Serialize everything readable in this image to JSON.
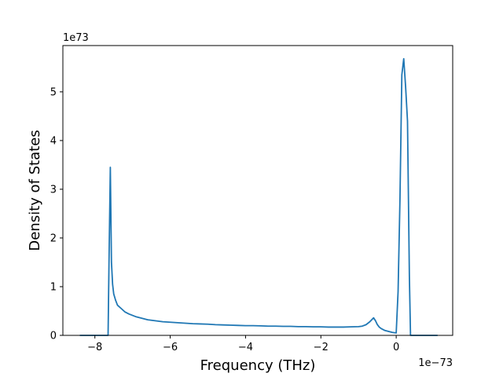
{
  "chart_data": {
    "type": "line",
    "xlabel": "Frequency (THz)",
    "ylabel": "Density of States",
    "x_offset_label": "1e−73",
    "y_offset_label": "1e73",
    "xlim": [
      -8.85,
      1.5
    ],
    "ylim": [
      0,
      5.95
    ],
    "x_ticks": [
      -8,
      -6,
      -4,
      -2,
      0
    ],
    "x_tick_labels": [
      "−8",
      "−6",
      "−4",
      "−2",
      "0"
    ],
    "y_ticks": [
      0,
      1,
      2,
      3,
      4,
      5
    ],
    "y_tick_labels": [
      "0",
      "1",
      "2",
      "3",
      "4",
      "5"
    ],
    "grid": false,
    "line_color": "#1f77b4",
    "series": [
      {
        "x": [
          -8.4,
          -7.65,
          -7.62,
          -7.59,
          -7.56,
          -7.53,
          -7.5,
          -7.45,
          -7.4,
          -7.3,
          -7.2,
          -7.1,
          -7.0,
          -6.9,
          -6.8,
          -6.7,
          -6.6,
          -6.5,
          -6.4,
          -6.2,
          -6.0,
          -5.8,
          -5.6,
          -5.4,
          -5.2,
          -5.0,
          -4.8,
          -4.6,
          -4.4,
          -4.2,
          -4.0,
          -3.8,
          -3.6,
          -3.4,
          -3.2,
          -3.0,
          -2.8,
          -2.6,
          -2.4,
          -2.2,
          -2.0,
          -1.8,
          -1.6,
          -1.4,
          -1.2,
          -1.0,
          -0.9,
          -0.8,
          -0.7,
          -0.6,
          -0.55,
          -0.5,
          -0.45,
          -0.4,
          -0.3,
          -0.2,
          -0.1,
          0.0,
          0.05,
          0.1,
          0.15,
          0.2,
          0.25,
          0.3,
          0.35,
          0.38,
          0.41,
          0.6,
          1.1
        ],
        "y": [
          0,
          0,
          1.8,
          3.45,
          1.5,
          1.05,
          0.85,
          0.72,
          0.62,
          0.55,
          0.48,
          0.44,
          0.41,
          0.38,
          0.36,
          0.34,
          0.32,
          0.31,
          0.3,
          0.28,
          0.27,
          0.26,
          0.25,
          0.24,
          0.235,
          0.23,
          0.22,
          0.215,
          0.21,
          0.205,
          0.2,
          0.2,
          0.195,
          0.19,
          0.19,
          0.185,
          0.185,
          0.18,
          0.18,
          0.175,
          0.175,
          0.17,
          0.17,
          0.17,
          0.175,
          0.18,
          0.19,
          0.22,
          0.28,
          0.36,
          0.3,
          0.22,
          0.17,
          0.14,
          0.1,
          0.08,
          0.06,
          0.05,
          0.9,
          2.8,
          5.35,
          5.68,
          5.1,
          4.4,
          1.2,
          0,
          0,
          0,
          0
        ]
      }
    ]
  }
}
